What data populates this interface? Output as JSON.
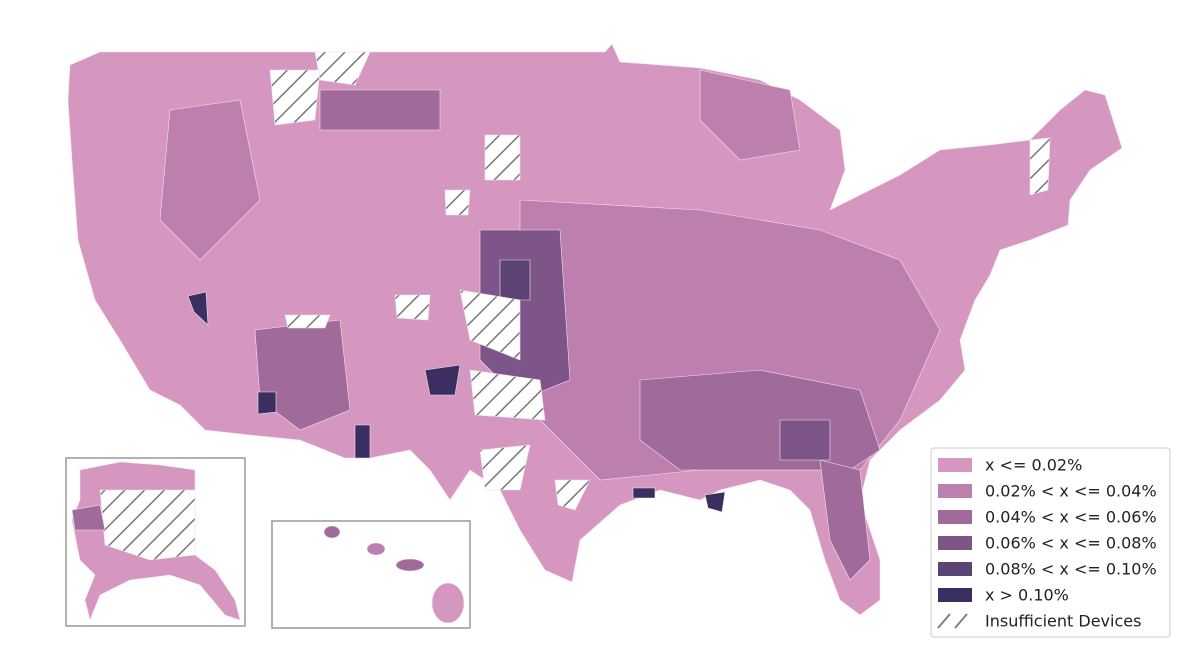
{
  "legend": {
    "items": [
      {
        "label": "x <= 0.02%",
        "color": "#d597bf"
      },
      {
        "label": "0.02% < x <= 0.04%",
        "color": "#bd7fae"
      },
      {
        "label": "0.04% < x <= 0.06%",
        "color": "#a06a9b"
      },
      {
        "label": "0.06% < x <= 0.08%",
        "color": "#7e5589"
      },
      {
        "label": "0.08% < x <= 0.10%",
        "color": "#5c4375"
      },
      {
        "label": "x > 0.10%",
        "color": "#3a2f60"
      },
      {
        "label": "Insufficient Devices",
        "color": "#808080",
        "pattern": "hatch"
      }
    ]
  }
}
